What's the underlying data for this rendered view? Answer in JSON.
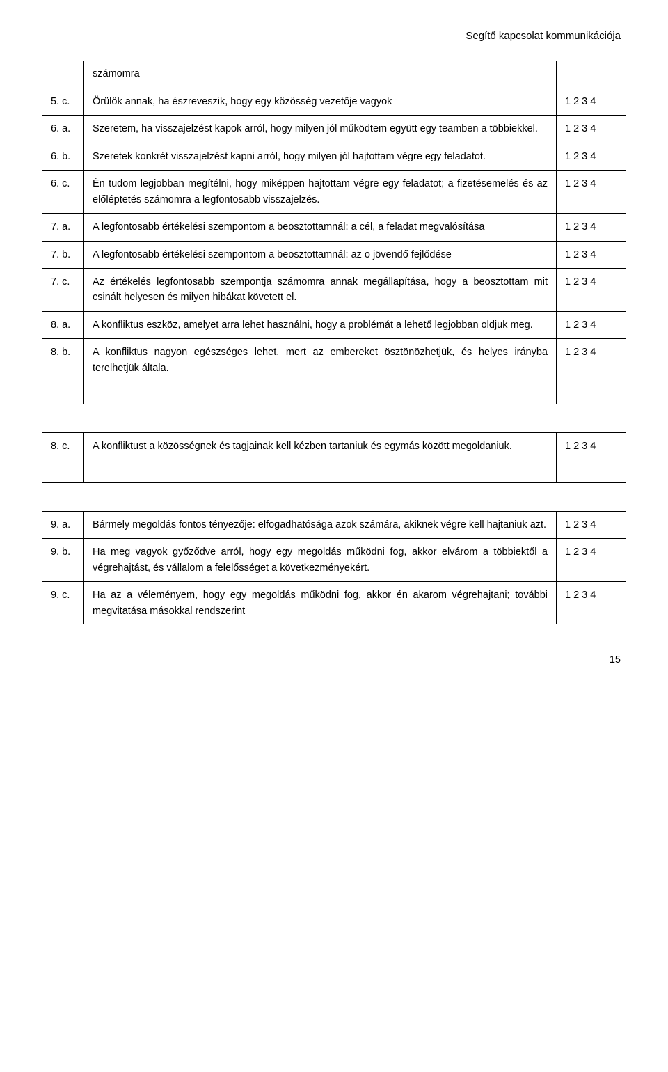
{
  "header": {
    "title": "Segítő kapcsolat kommunikációja"
  },
  "rating": "1 2 3 4",
  "table1": {
    "rows": [
      {
        "id": "",
        "text": "számomra",
        "rating": "",
        "continuation": true
      },
      {
        "id": "5. c.",
        "text": "Örülök annak, ha észreveszik, hogy egy közösség vezetője vagyok",
        "rating": "1 2 3 4"
      },
      {
        "id": "6. a.",
        "text": "Szeretem, ha visszajelzést kapok arról, hogy milyen jól működtem együtt egy teamben a többiekkel.",
        "rating": "1 2 3 4"
      },
      {
        "id": "6. b.",
        "text": "Szeretek konkrét visszajelzést kapni arról, hogy milyen jól hajtottam végre egy feladatot.",
        "rating": "1 2 3 4"
      },
      {
        "id": "6. c.",
        "text": "Én tudom legjobban megítélni, hogy miképpen hajtottam végre egy feladatot; a fizetésemelés és az előléptetés számomra a legfontosabb visszajelzés.",
        "rating": "1 2 3 4"
      },
      {
        "id": "7. a.",
        "text": "A legfontosabb értékelési szempontom a beosztottamnál: a cél, a feladat megvalósítása",
        "rating": "1 2 3 4"
      },
      {
        "id": "7. b.",
        "text": "A legfontosabb értékelési szempontom a beosztottamnál: az o jövendő fejlődése",
        "rating": "1 2 3 4"
      },
      {
        "id": "7. c.",
        "text": "Az értékelés legfontosabb szempontja számomra annak megállapítása, hogy a beosztottam mit csinált helyesen és milyen hibákat követett el.",
        "rating": "1 2 3 4"
      },
      {
        "id": "8. a.",
        "text": " A konfliktus eszköz, amelyet arra lehet használni, hogy a problémát a lehető legjobban oldjuk meg.",
        "rating": "1 2 3 4"
      },
      {
        "id": "8. b.",
        "text": "A konfliktus nagyon egészséges lehet, mert az embereket ösztönözhetjük, és helyes irányba terelhetjük általa.",
        "rating": "1 2 3 4",
        "tall": true
      }
    ]
  },
  "table2": {
    "rows": [
      {
        "id": "8. c.",
        "text": "A konfliktust a közösségnek és tagjainak kell kézben tartaniuk és egymás között megoldaniuk.",
        "rating": "1 2 3 4",
        "tall": true
      }
    ]
  },
  "table3": {
    "rows": [
      {
        "id": "9. a.",
        "text": "Bármely megoldás fontos tényezője: elfogadhatósága azok számára, akiknek végre kell hajtaniuk azt.",
        "rating": "1 2 3 4"
      },
      {
        "id": "9. b.",
        "text": "Ha meg vagyok győződve arról, hogy egy megoldás működni fog, akkor elvárom a többiektől a végrehajtást, és vállalom a felelősséget a következményekért.",
        "rating": "1 2 3 4"
      },
      {
        "id": "9. c.",
        "text": "Ha az a véleményem, hogy egy megoldás működni fog, akkor én akarom végrehajtani; további megvitatása másokkal rendszerint",
        "rating": "1 2 3 4",
        "open": true
      }
    ]
  },
  "footer": {
    "page_number": "15"
  }
}
